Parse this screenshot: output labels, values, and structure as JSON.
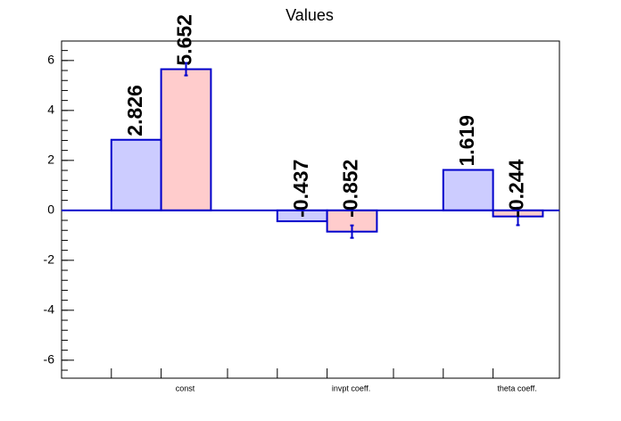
{
  "chart_data": {
    "type": "bar",
    "title": "Values",
    "categories": [
      "const",
      "invpt coeff.",
      "theta coeff."
    ],
    "series": [
      {
        "color": "#ccccff",
        "values": [
          2.826,
          -0.437,
          1.619
        ]
      },
      {
        "color": "#ffcccc",
        "values": [
          5.652,
          -0.852,
          -0.244
        ],
        "errors": [
          0.25,
          0.25,
          0.35
        ]
      }
    ],
    "ylim": [
      -6.72,
      6.78
    ],
    "yticks": [
      -6,
      -4,
      -2,
      0,
      2,
      4,
      6
    ]
  }
}
